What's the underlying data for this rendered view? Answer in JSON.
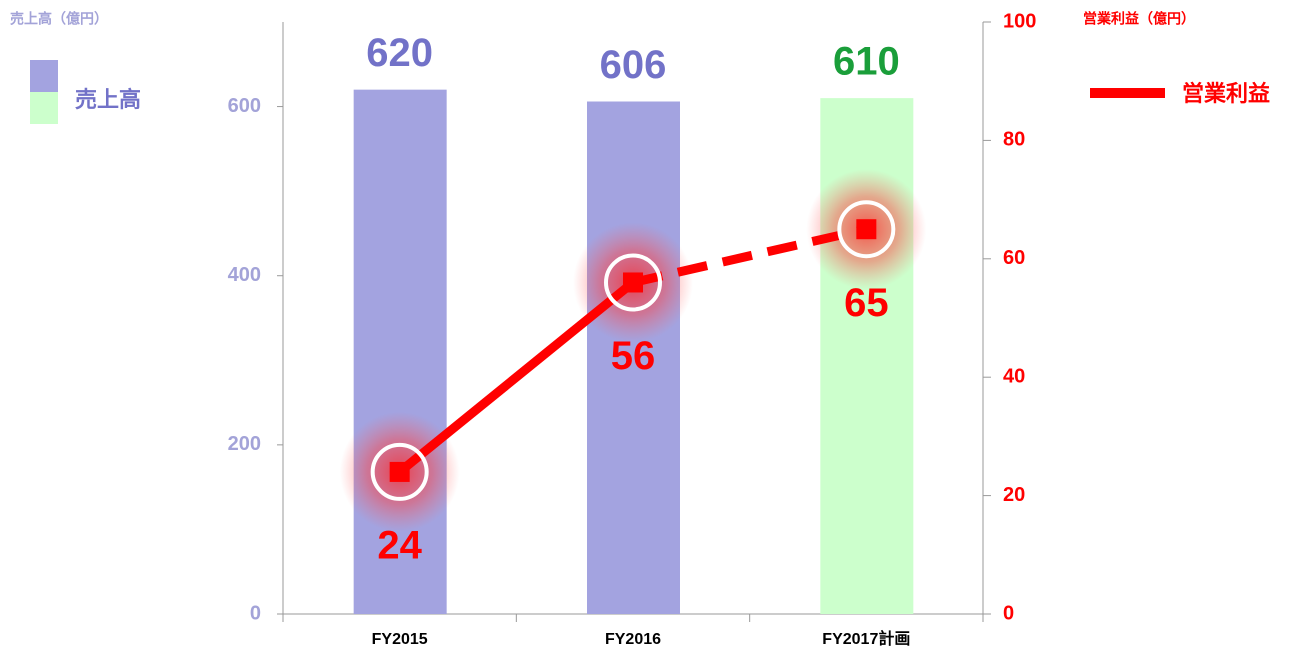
{
  "chart_data": {
    "type": "bar",
    "categories": [
      "FY2015",
      "FY2016",
      "FY2017計画"
    ],
    "ylabel": "売上高（億円）",
    "y2label": "営業利益（億円）",
    "ylim": [
      0,
      700
    ],
    "yticks": [
      0,
      200,
      400,
      600
    ],
    "y2lim": [
      0,
      100
    ],
    "y2ticks": [
      0,
      20,
      40,
      60,
      80,
      100
    ],
    "series": [
      {
        "name": "売上高",
        "type": "bar",
        "colors": [
          "#a3a3e0",
          "#a3a3e0",
          "#ccffcc"
        ],
        "label_colors": [
          "#7272c8",
          "#7272c8",
          "#1a9e3a"
        ],
        "values": [
          620,
          606,
          610
        ]
      },
      {
        "name": "営業利益",
        "type": "line",
        "axis": "y2",
        "color": "#ff0000",
        "values": [
          24,
          56,
          65
        ],
        "dashed_segments": [
          1
        ]
      }
    ]
  }
}
